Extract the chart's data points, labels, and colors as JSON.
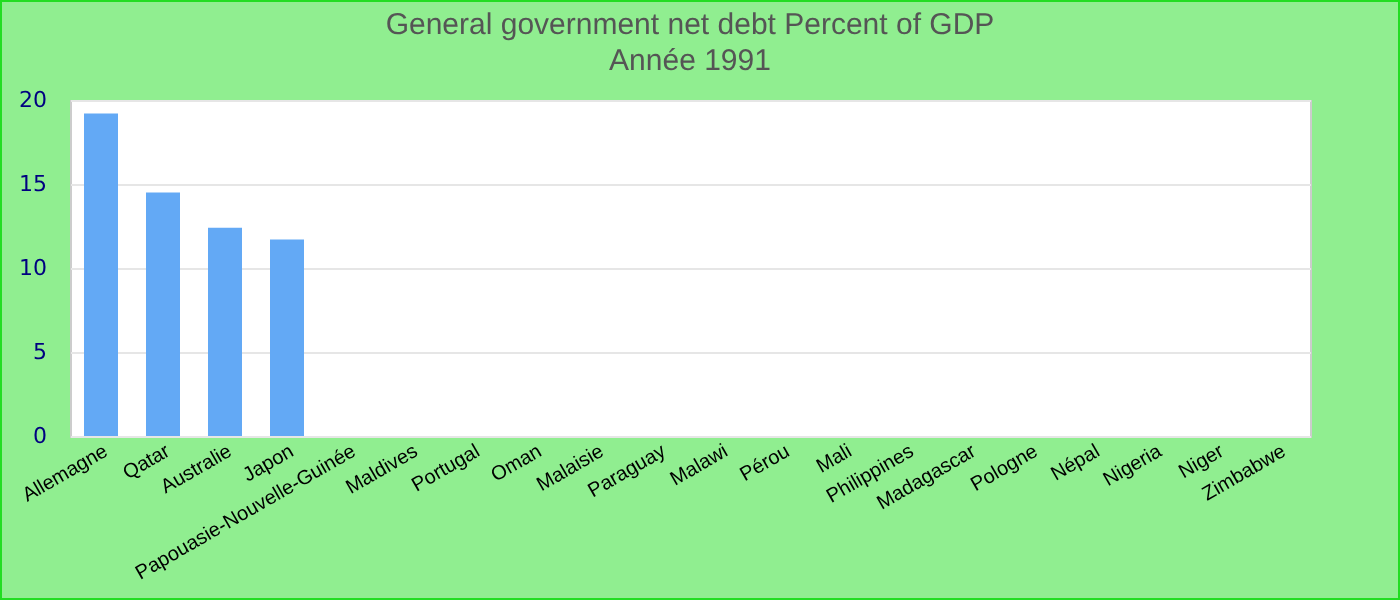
{
  "chart_data": {
    "type": "bar",
    "title": "General government net debt  Percent of GDP",
    "subtitle": "Année 1991",
    "categories": [
      "Allemagne",
      "Qatar",
      "Australie",
      "Japon",
      "Papouasie-Nouvelle-Guinée",
      "Maldives",
      "Portugal",
      "Oman",
      "Malaisie",
      "Paraguay",
      "Malawi",
      "Pérou",
      "Mali",
      "Philippines",
      "Madagascar",
      "Pologne",
      "Népal",
      "Nigeria",
      "Niger",
      "Zimbabwe"
    ],
    "values": [
      19.2,
      14.5,
      12.4,
      11.7,
      null,
      null,
      null,
      null,
      null,
      null,
      null,
      null,
      null,
      null,
      null,
      null,
      null,
      null,
      null,
      null
    ],
    "color": "#63a9f5",
    "ylim": [
      0,
      20
    ],
    "yticks": [
      0,
      5,
      10,
      15,
      20
    ],
    "grid": "y"
  }
}
